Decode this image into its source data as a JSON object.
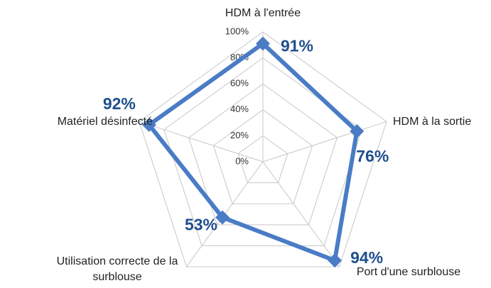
{
  "chart_data": {
    "type": "radar",
    "categories": [
      "HDM à l'entrée",
      "HDM à la sortie",
      "Port d'une surblouse",
      "Utilisation correcte de la surblouse",
      "Matériel désinfecté"
    ],
    "values": [
      91,
      76,
      94,
      53,
      92
    ],
    "value_labels": [
      "91%",
      "76%",
      "94%",
      "53%",
      "92%"
    ],
    "color": "#4a7cc6",
    "label_color": "#1f4e8c",
    "ylim": [
      0,
      100
    ],
    "yticks": [
      {
        "value": 0,
        "label": "0%"
      },
      {
        "value": 20,
        "label": "20%"
      },
      {
        "value": 40,
        "label": "40%"
      },
      {
        "value": 60,
        "label": "60%"
      },
      {
        "value": 80,
        "label": "80%"
      },
      {
        "value": 100,
        "label": "100%"
      }
    ],
    "grid": true
  }
}
